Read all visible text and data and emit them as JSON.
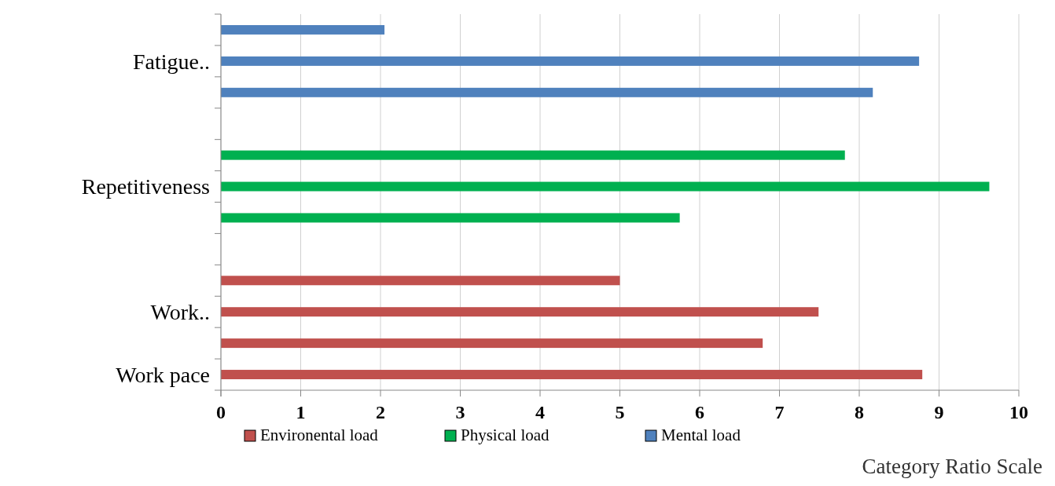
{
  "chart_data": {
    "type": "bar",
    "orientation": "horizontal",
    "xlabel": "Category Ratio Scale",
    "categories": [
      null,
      "Fatigue..",
      null,
      null,
      null,
      "Repetitiveness",
      null,
      null,
      null,
      "Work..",
      null,
      "Work pace"
    ],
    "series": [
      {
        "name": "Environental load",
        "color": "#c0504d",
        "values": [
          null,
          null,
          null,
          null,
          null,
          null,
          null,
          null,
          5.0,
          7.49,
          6.79,
          8.79
        ]
      },
      {
        "name": "Physical load",
        "color": "#00b050",
        "values": [
          null,
          null,
          null,
          null,
          7.82,
          9.63,
          5.75,
          null,
          null,
          null,
          null,
          null
        ]
      },
      {
        "name": "Mental load",
        "color": "#4f81bd",
        "values": [
          2.05,
          8.75,
          8.17,
          null,
          null,
          null,
          null,
          null,
          null,
          null,
          null,
          null
        ]
      }
    ],
    "xlim": [
      0,
      10
    ],
    "xticks": [
      0,
      1,
      2,
      3,
      4,
      5,
      6,
      7,
      8,
      9,
      10
    ],
    "grid": "x",
    "legend": "bottom"
  }
}
